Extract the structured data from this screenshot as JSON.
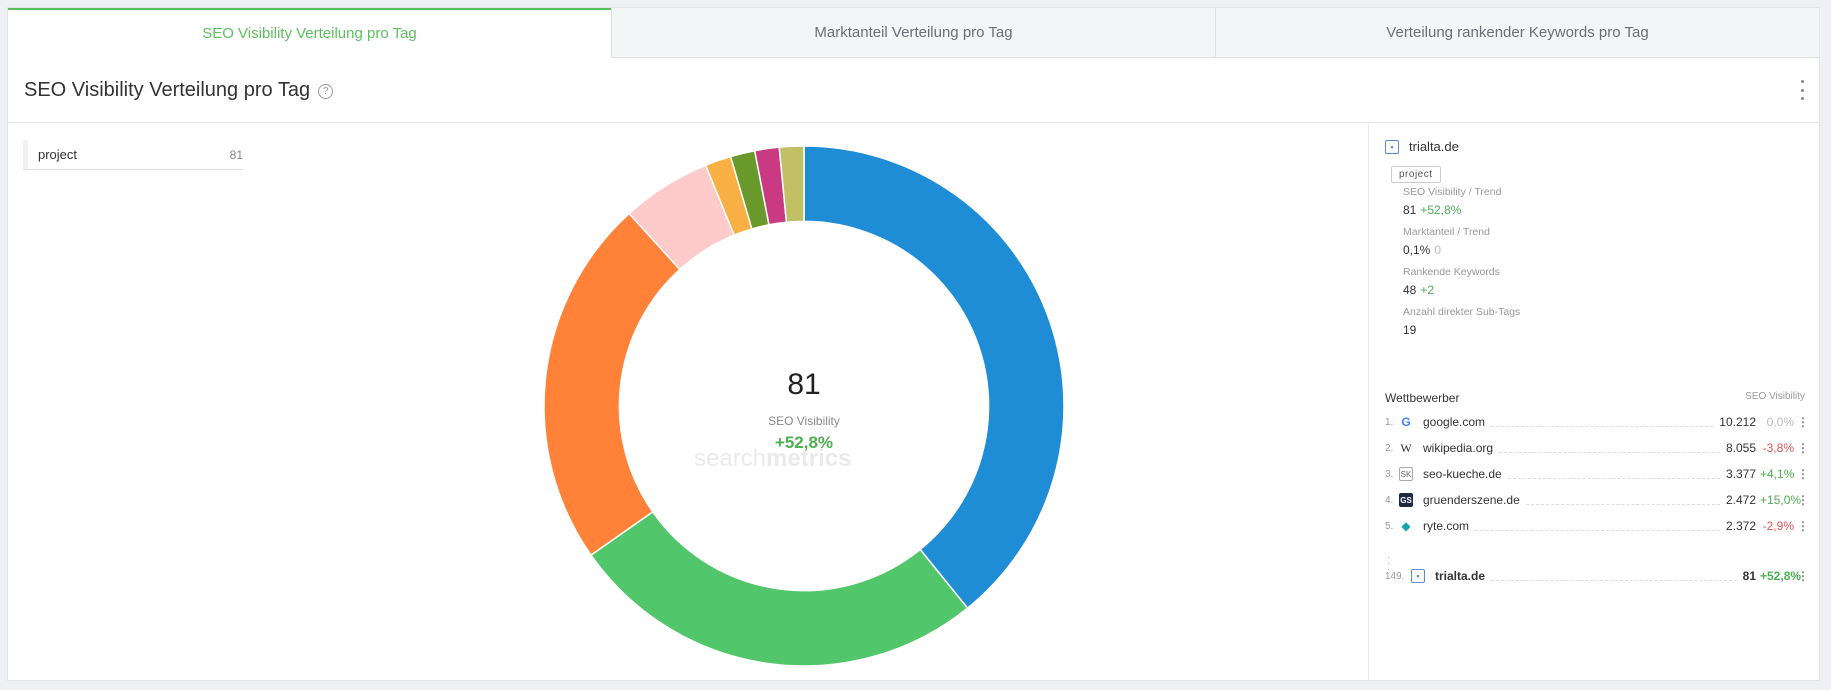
{
  "tabs": [
    {
      "label": "SEO Visibility Verteilung pro Tag"
    },
    {
      "label": "Marktanteil Verteilung pro Tag"
    },
    {
      "label": "Verteilung rankender Keywords pro Tag"
    }
  ],
  "header": {
    "title": "SEO Visibility Verteilung pro Tag"
  },
  "tag_list": {
    "name": "project",
    "count": "81"
  },
  "center": {
    "value": "81",
    "label": "SEO Visibility",
    "trend": "+52,8%"
  },
  "watermark": {
    "light": "search",
    "bold": "metrics"
  },
  "chart_data": {
    "type": "pie",
    "title": "",
    "slices": [
      {
        "value": 38.7,
        "color": "#1f8dd6"
      },
      {
        "value": 25.8,
        "color": "#52c66a"
      },
      {
        "value": 22.7,
        "color": "#ff8238"
      },
      {
        "value": 5.5,
        "color": "#ffcaca"
      },
      {
        "value": 1.6,
        "color": "#f8b045"
      },
      {
        "value": 1.5,
        "color": "#6a9a2c"
      },
      {
        "value": 1.5,
        "color": "#c93a82"
      },
      {
        "value": 1.5,
        "color": "#c2c065"
      }
    ],
    "inner_ratio": 0.71,
    "center_value": 81
  },
  "side": {
    "domain": "trialta.de",
    "tag": "project",
    "kpis": [
      {
        "label": "SEO Visibility / Trend",
        "value": "81",
        "trend": "+52,8%",
        "trend_kind": "pos"
      },
      {
        "label": "Marktanteil / Trend",
        "value": "0,1%",
        "trend": "0",
        "trend_kind": "neu"
      },
      {
        "label": "Rankende Keywords",
        "value": "48",
        "trend": "+2",
        "trend_kind": "pos"
      },
      {
        "label": "Anzahl direkter Sub-Tags",
        "value": "19",
        "trend": "",
        "trend_kind": "neu"
      }
    ],
    "competitors_title": "Wettbewerber",
    "competitors_metric": "SEO Visibility",
    "competitors": [
      {
        "rank": "1.",
        "name": "google.com",
        "value": "10.212",
        "trend": "0,0%",
        "trend_kind": "neu",
        "icon": "google-icon",
        "glyph": "G",
        "cls": "g"
      },
      {
        "rank": "2.",
        "name": "wikipedia.org",
        "value": "8.055",
        "trend": "-3,8%",
        "trend_kind": "neg",
        "icon": "wikipedia-icon",
        "glyph": "W",
        "cls": "w"
      },
      {
        "rank": "3.",
        "name": "seo-kueche.de",
        "value": "3.377",
        "trend": "+4,1%",
        "trend_kind": "pos",
        "icon": "seo-kueche-icon",
        "glyph": "SK",
        "cls": "sk"
      },
      {
        "rank": "4.",
        "name": "gruenderszene.de",
        "value": "2.472",
        "trend": "+15,0%",
        "trend_kind": "pos",
        "icon": "gruenderszene-icon",
        "glyph": "GS",
        "cls": "gs"
      },
      {
        "rank": "5.",
        "name": "ryte.com",
        "value": "2.372",
        "trend": "-2,9%",
        "trend_kind": "neg",
        "icon": "ryte-icon",
        "glyph": "◆",
        "cls": "ry"
      }
    ],
    "own": {
      "rank": "149.",
      "name": "trialta.de",
      "value": "81",
      "trend": "+52,8%",
      "trend_kind": "pos"
    }
  }
}
